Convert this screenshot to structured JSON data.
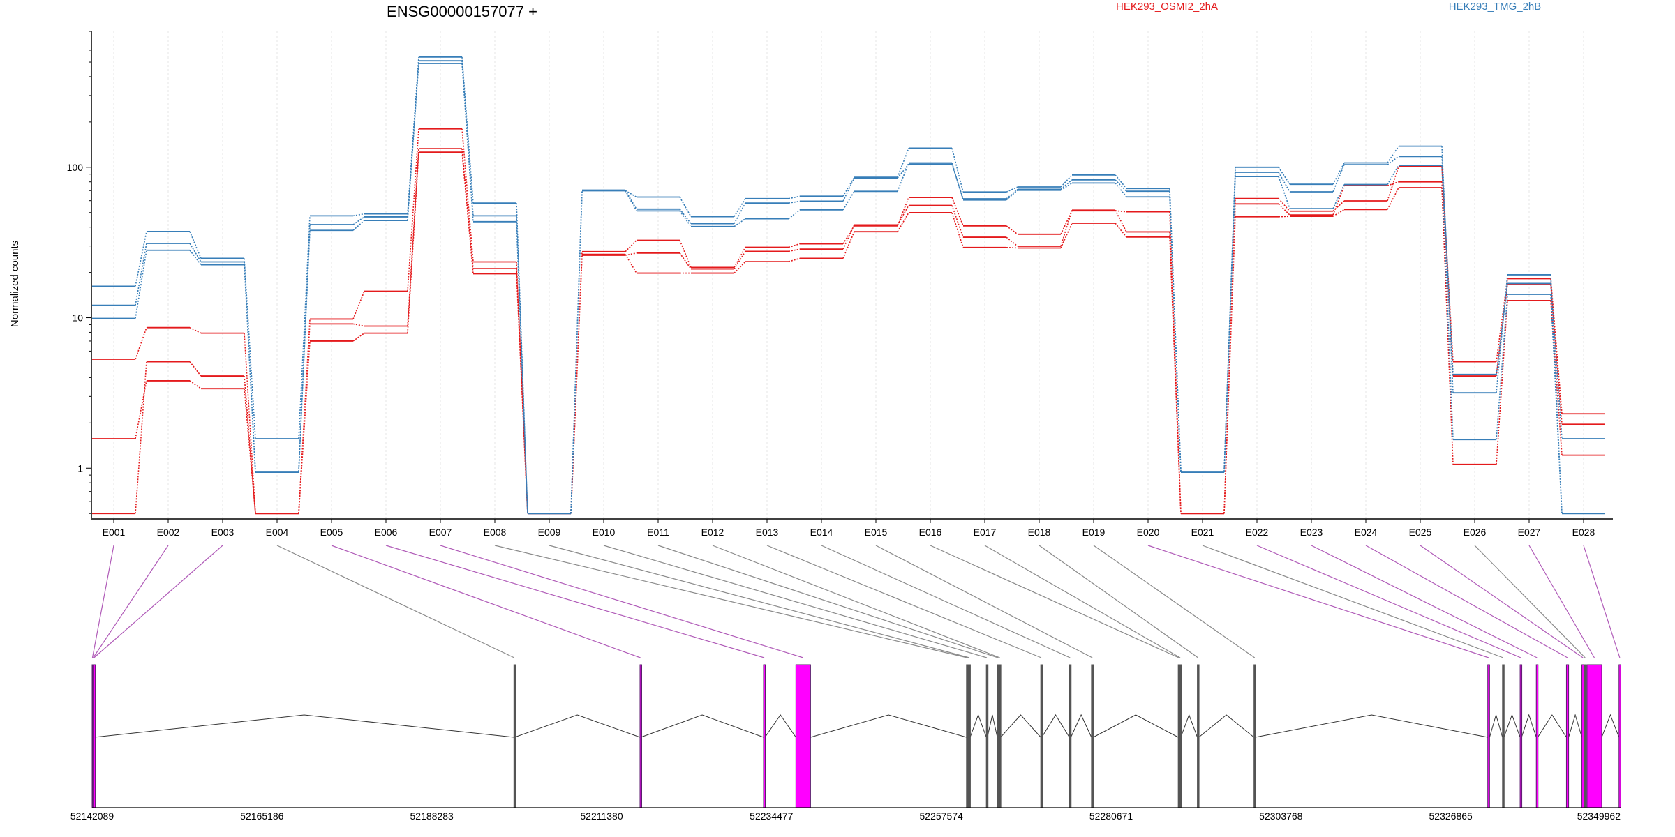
{
  "chart_data": {
    "type": "line",
    "title": "ENSG00000157077 +",
    "ylabel": "Normalized counts",
    "yscale": "log",
    "ylim": [
      0.47,
      800
    ],
    "y_ticks": [
      1,
      10,
      100
    ],
    "y_tick_labels": [
      "1",
      "10",
      "100"
    ],
    "categories": [
      "E001",
      "E002",
      "E003",
      "E004",
      "E005",
      "E006",
      "E007",
      "E008",
      "E009",
      "E010",
      "E011",
      "E012",
      "E013",
      "E014",
      "E015",
      "E016",
      "E017",
      "E018",
      "E019",
      "E020",
      "E021",
      "E022",
      "E023",
      "E024",
      "E025",
      "E026",
      "E027",
      "E028"
    ],
    "legend": [
      {
        "name": "HEK293_OSMI2_2hA",
        "color": "#e41a1c"
      },
      {
        "name": "HEK293_TMG_2hB",
        "color": "#377eb8"
      }
    ],
    "series": [
      {
        "group": "HEK293_OSMI2_2hA",
        "color": "#e41a1c",
        "values": [
          5.3,
          8.6,
          7.9,
          0.5,
          9.8,
          15.0,
          180,
          23.5,
          0.5,
          27.5,
          32.7,
          21.6,
          29.4,
          31.0,
          40.8,
          63.0,
          40.8,
          35.9,
          51.4,
          50.6,
          0.5,
          62.0,
          51.1,
          59.8,
          101,
          5.1,
          18.2,
          2.3
        ]
      },
      {
        "group": "HEK293_OSMI2_2hA",
        "color": "#e41a1c",
        "values": [
          0.5,
          5.1,
          4.1,
          0.5,
          9.1,
          8.8,
          133,
          21.2,
          0.5,
          26.0,
          26.9,
          21.1,
          27.6,
          28.6,
          41.4,
          55.8,
          34.3,
          29.9,
          51.9,
          37.2,
          0.5,
          57.1,
          48.2,
          75.5,
          80.0,
          4.1,
          16.6,
          1.96
        ]
      },
      {
        "group": "HEK293_OSMI2_2hA",
        "color": "#e41a1c",
        "values": [
          1.57,
          3.81,
          3.38,
          0.5,
          7.0,
          7.9,
          126,
          19.6,
          0.5,
          26.4,
          19.8,
          19.8,
          23.6,
          24.8,
          37.3,
          49.9,
          29.3,
          29.1,
          42.5,
          34.4,
          0.5,
          46.9,
          47.2,
          52.4,
          73.2,
          1.06,
          13.0,
          1.22
        ]
      },
      {
        "group": "HEK293_TMG_2hB",
        "color": "#377eb8",
        "values": [
          16.2,
          37.4,
          24.8,
          1.57,
          47.6,
          49.0,
          540,
          57.8,
          0.5,
          70.1,
          63.4,
          47.0,
          61.9,
          64.2,
          85.8,
          134,
          68.5,
          74.0,
          88.9,
          72.3,
          0.94,
          100,
          77.1,
          107,
          138,
          3.17,
          19.3,
          0.5
        ]
      },
      {
        "group": "HEK293_TMG_2hB",
        "color": "#377eb8",
        "values": [
          12.1,
          31.2,
          23.5,
          0.95,
          41.6,
          46.8,
          510,
          47.6,
          0.5,
          70.5,
          52.7,
          42.2,
          57.8,
          59.5,
          84.8,
          105,
          61.7,
          71.4,
          82.5,
          69.3,
          0.95,
          92.6,
          68.7,
          104,
          118,
          4.2,
          16.9,
          1.57
        ]
      },
      {
        "group": "HEK293_TMG_2hB",
        "color": "#377eb8",
        "values": [
          9.9,
          28.1,
          22.5,
          0.94,
          38.1,
          44.3,
          490,
          43.5,
          0.5,
          69.8,
          51.3,
          40.4,
          45.5,
          52.1,
          69.2,
          107,
          60.6,
          70.4,
          78.6,
          63.6,
          0.94,
          86.8,
          53.1,
          76.8,
          103,
          1.55,
          14.3,
          0.5
        ]
      }
    ],
    "genomic_axis": {
      "range": [
        52142089,
        52349962
      ],
      "tick_values": [
        52142089,
        52165186,
        52188283,
        52211380,
        52234477,
        52257574,
        52280671,
        52303768,
        52326865,
        52349962
      ],
      "tick_labels": [
        "52142089",
        "52165186",
        "52188283",
        "52211380",
        "52234477",
        "52257574",
        "52280671",
        "52303768",
        "52326865",
        "52349962"
      ]
    },
    "exons": [
      {
        "id": "E001",
        "start": 52142089,
        "end": 52142180,
        "significant": true
      },
      {
        "id": "E002",
        "start": 52142180,
        "end": 52142290,
        "significant": true
      },
      {
        "id": "E003",
        "start": 52142290,
        "end": 52142400,
        "significant": true
      },
      {
        "id": "E004",
        "start": 52199450,
        "end": 52199550,
        "significant": false
      },
      {
        "id": "E005",
        "start": 52216600,
        "end": 52216720,
        "significant": true
      },
      {
        "id": "E006",
        "start": 52233400,
        "end": 52233600,
        "significant": true
      },
      {
        "id": "E007",
        "start": 52237800,
        "end": 52239800,
        "significant": true
      },
      {
        "id": "E008",
        "start": 52261000,
        "end": 52261200,
        "significant": false
      },
      {
        "id": "E009",
        "start": 52261300,
        "end": 52261500,
        "significant": false
      },
      {
        "id": "E010",
        "start": 52263700,
        "end": 52263850,
        "significant": false
      },
      {
        "id": "E011",
        "start": 52265200,
        "end": 52265400,
        "significant": false
      },
      {
        "id": "E012",
        "start": 52265450,
        "end": 52265650,
        "significant": false
      },
      {
        "id": "E013",
        "start": 52271100,
        "end": 52271250,
        "significant": false
      },
      {
        "id": "E014",
        "start": 52275000,
        "end": 52275200,
        "significant": false
      },
      {
        "id": "E015",
        "start": 52278000,
        "end": 52278250,
        "significant": false
      },
      {
        "id": "E016",
        "start": 52289800,
        "end": 52289950,
        "significant": false
      },
      {
        "id": "E017",
        "start": 52290000,
        "end": 52290150,
        "significant": false
      },
      {
        "id": "E018",
        "start": 52292400,
        "end": 52292600,
        "significant": false
      },
      {
        "id": "E019",
        "start": 52300100,
        "end": 52300300,
        "significant": false
      },
      {
        "id": "E020",
        "start": 52331900,
        "end": 52332150,
        "significant": true
      },
      {
        "id": "E021",
        "start": 52333900,
        "end": 52334100,
        "significant": false
      },
      {
        "id": "E022",
        "start": 52336300,
        "end": 52336500,
        "significant": true
      },
      {
        "id": "E023",
        "start": 52338500,
        "end": 52338700,
        "significant": true
      },
      {
        "id": "E024",
        "start": 52342600,
        "end": 52342900,
        "significant": true
      },
      {
        "id": "E025",
        "start": 52344700,
        "end": 52345000,
        "significant": true
      },
      {
        "id": "E026",
        "start": 52345000,
        "end": 52345300,
        "significant": false
      },
      {
        "id": "E027",
        "start": 52345400,
        "end": 52347400,
        "significant": true
      },
      {
        "id": "E028",
        "start": 52349750,
        "end": 52349962,
        "significant": true
      }
    ],
    "colors": {
      "axis": "#000000",
      "grid": "#e6e6e6",
      "significant_exon": "#ff00ff",
      "significant_exon_edge": "#5a1e6e",
      "significant_link": "#b05bb8",
      "normal_link": "#8a8a8a",
      "normal_exon": "#555555",
      "intron": "#333333"
    }
  }
}
